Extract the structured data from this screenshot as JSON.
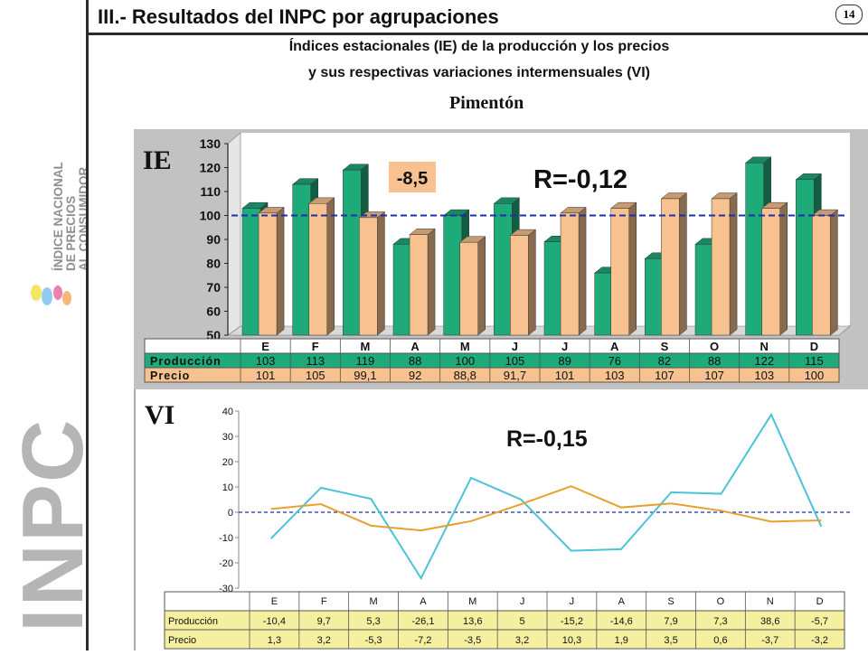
{
  "header": {
    "title": "III.- Resultados del INPC por agrupaciones",
    "page_number": "14",
    "subtitle_line1": "Índices estacionales (IE) de la producción y los precios",
    "subtitle_line2": "y sus respectivas variaciones intermensuales (VI)",
    "product": "Pimentón"
  },
  "logo": {
    "wordmark": "INPC",
    "lines": [
      "ÍNDICE NACIONAL",
      "DE PRECIOS",
      "AL CONSUMIDOR"
    ]
  },
  "chart_data": [
    {
      "type": "bar",
      "panel_label": "IE",
      "categories": [
        "E",
        "F",
        "M",
        "A",
        "M",
        "J",
        "J",
        "A",
        "S",
        "O",
        "N",
        "D"
      ],
      "series": [
        {
          "name": "Producción",
          "color": "#1faa7a",
          "values": [
            103,
            113,
            119,
            88,
            100,
            105,
            89,
            76,
            82,
            88,
            122,
            115
          ],
          "labels": [
            "103",
            "113",
            "119",
            "88",
            "100",
            "105",
            "89",
            "76",
            "82",
            "88",
            "122",
            "115"
          ]
        },
        {
          "name": "Precio",
          "color": "#f7c28f",
          "values": [
            101,
            105,
            99.1,
            92,
            88.8,
            91.7,
            101,
            103,
            107,
            107,
            103,
            100
          ],
          "labels": [
            "101",
            "105",
            "99,1",
            "92",
            "88,8",
            "91,7",
            "101",
            "103",
            "107",
            "107",
            "103",
            "100"
          ]
        }
      ],
      "ylim": [
        50,
        130
      ],
      "yticks": [
        50,
        60,
        70,
        80,
        90,
        100,
        110,
        120,
        130
      ],
      "reference_line": 100,
      "annotations": [
        "-8,5",
        "R=-0,12"
      ]
    },
    {
      "type": "line",
      "panel_label": "VI",
      "categories": [
        "E",
        "F",
        "M",
        "A",
        "M",
        "J",
        "J",
        "A",
        "S",
        "O",
        "N",
        "D"
      ],
      "series": [
        {
          "name": "Producción",
          "color": "#4cc3d8",
          "values": [
            -10.4,
            9.7,
            5.3,
            -26.1,
            13.6,
            5,
            -15.2,
            -14.6,
            7.9,
            7.3,
            38.6,
            -5.7
          ],
          "labels": [
            "-10,4",
            "9,7",
            "5,3",
            "-26,1",
            "13,6",
            "5",
            "-15,2",
            "-14,6",
            "7,9",
            "7,3",
            "38,6",
            "-5,7"
          ]
        },
        {
          "name": "Precio",
          "color": "#e8a030",
          "values": [
            1.3,
            3.2,
            -5.3,
            -7.2,
            -3.5,
            3.2,
            10.3,
            1.9,
            3.5,
            0.6,
            -3.7,
            -3.2
          ],
          "labels": [
            "1,3",
            "3,2",
            "-5,3",
            "-7,2",
            "-3,5",
            "3,2",
            "10,3",
            "1,9",
            "3,5",
            "0,6",
            "-3,7",
            "-3,2"
          ]
        }
      ],
      "ylim": [
        -30,
        45
      ],
      "yticks": [
        -30,
        -20,
        -10,
        0,
        10,
        20,
        30,
        40
      ],
      "reference_line": 0,
      "annotations": [
        "R=-0,15"
      ]
    }
  ]
}
